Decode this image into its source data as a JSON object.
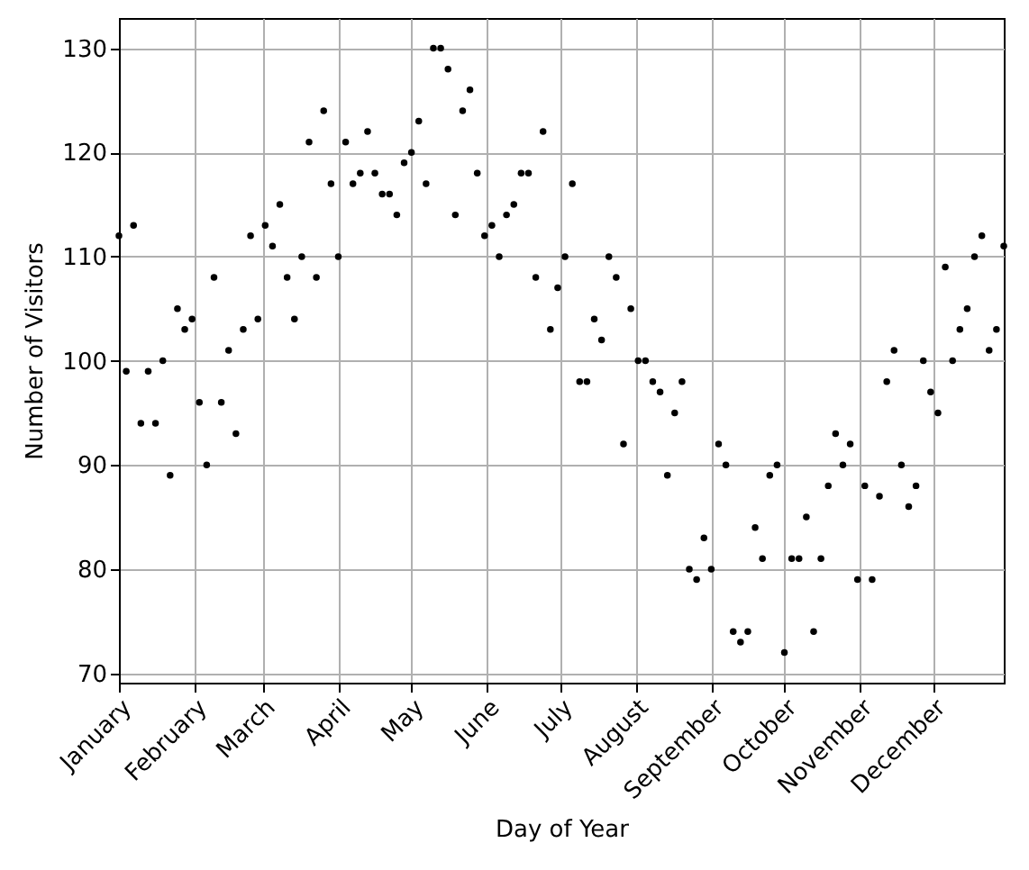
{
  "chart_data": {
    "type": "scatter",
    "xlabel": "Day of Year",
    "ylabel": "Number of Visitors",
    "x": [
      "--01-01",
      "--01-04",
      "--01-07",
      "--01-10",
      "--01-13",
      "--01-16",
      "--01-19",
      "--01-22",
      "--01-25",
      "--01-28",
      "--01-31",
      "--02-03",
      "--02-06",
      "--02-09",
      "--02-12",
      "--02-15",
      "--02-18",
      "--02-21",
      "--02-24",
      "--02-27",
      "--03-02",
      "--03-05",
      "--03-08",
      "--03-11",
      "--03-14",
      "--03-17",
      "--03-20",
      "--03-23",
      "--03-26",
      "--03-29",
      "--04-01",
      "--04-04",
      "--04-07",
      "--04-10",
      "--04-13",
      "--04-16",
      "--04-19",
      "--04-22",
      "--04-25",
      "--04-28",
      "--05-01",
      "--05-04",
      "--05-07",
      "--05-10",
      "--05-13",
      "--05-16",
      "--05-19",
      "--05-22",
      "--05-25",
      "--05-28",
      "--05-31",
      "--06-03",
      "--06-06",
      "--06-09",
      "--06-12",
      "--06-15",
      "--06-18",
      "--06-21",
      "--06-24",
      "--06-27",
      "--06-30",
      "--07-03",
      "--07-06",
      "--07-09",
      "--07-12",
      "--07-15",
      "--07-18",
      "--07-21",
      "--07-24",
      "--07-27",
      "--07-30",
      "--08-02",
      "--08-05",
      "--08-08",
      "--08-11",
      "--08-14",
      "--08-17",
      "--08-20",
      "--08-23",
      "--08-26",
      "--08-29",
      "--09-01",
      "--09-04",
      "--09-07",
      "--09-10",
      "--09-13",
      "--09-16",
      "--09-19",
      "--09-22",
      "--09-25",
      "--09-28",
      "--10-01",
      "--10-04",
      "--10-07",
      "--10-10",
      "--10-13",
      "--10-16",
      "--10-19",
      "--10-22",
      "--10-25",
      "--10-28",
      "--10-31",
      "--11-03",
      "--11-06",
      "--11-09",
      "--11-12",
      "--11-15",
      "--11-18",
      "--11-21",
      "--11-24",
      "--11-27",
      "--11-30",
      "--12-03",
      "--12-06",
      "--12-09",
      "--12-12",
      "--12-15",
      "--12-18",
      "--12-21",
      "--12-24",
      "--12-27",
      "--12-30"
    ],
    "series": [
      {
        "color": "#000000",
        "values": [
          112,
          99,
          113,
          94,
          99,
          94,
          100,
          89,
          105,
          103,
          104,
          96,
          90,
          108,
          96,
          101,
          93,
          103,
          112,
          104,
          113,
          111,
          115,
          108,
          104,
          110,
          121,
          108,
          124,
          117,
          110,
          121,
          117,
          118,
          122,
          118,
          116,
          116,
          114,
          119,
          120,
          123,
          117,
          130,
          130,
          128,
          114,
          124,
          126,
          118,
          112,
          113,
          110,
          114,
          115,
          118,
          118,
          108,
          122,
          103,
          107,
          110,
          117,
          98,
          98,
          104,
          102,
          110,
          108,
          92,
          105,
          100,
          100,
          98,
          97,
          89,
          95,
          98,
          80,
          79,
          83,
          80,
          92,
          90,
          74,
          73,
          74,
          84,
          81,
          89,
          90,
          72,
          81,
          81,
          85,
          74,
          81,
          88,
          93,
          90,
          92,
          79,
          88,
          79,
          87,
          98,
          101,
          90,
          86,
          88,
          100,
          97,
          95,
          109,
          100,
          103,
          105,
          110,
          112,
          101,
          103,
          111
        ]
      }
    ],
    "xlim": [
      "--01-01",
      "--12-30"
    ],
    "xticks": [
      {
        "value": "--01-01",
        "label": "January"
      },
      {
        "value": "--02-01",
        "label": "February"
      },
      {
        "value": "--03-01",
        "label": "March"
      },
      {
        "value": "--04-01",
        "label": "April"
      },
      {
        "value": "--05-01",
        "label": "May"
      },
      {
        "value": "--06-01",
        "label": "June"
      },
      {
        "value": "--07-01",
        "label": "July"
      },
      {
        "value": "--08-01",
        "label": "August"
      },
      {
        "value": "--09-01",
        "label": "September"
      },
      {
        "value": "--10-01",
        "label": "October"
      },
      {
        "value": "--11-01",
        "label": "November"
      },
      {
        "value": "--12-01",
        "label": "December"
      }
    ],
    "ylim": [
      69.1,
      132.9
    ],
    "yticks": [
      70,
      80,
      90,
      100,
      110,
      120,
      130
    ],
    "grid": true,
    "marker": "circle"
  }
}
